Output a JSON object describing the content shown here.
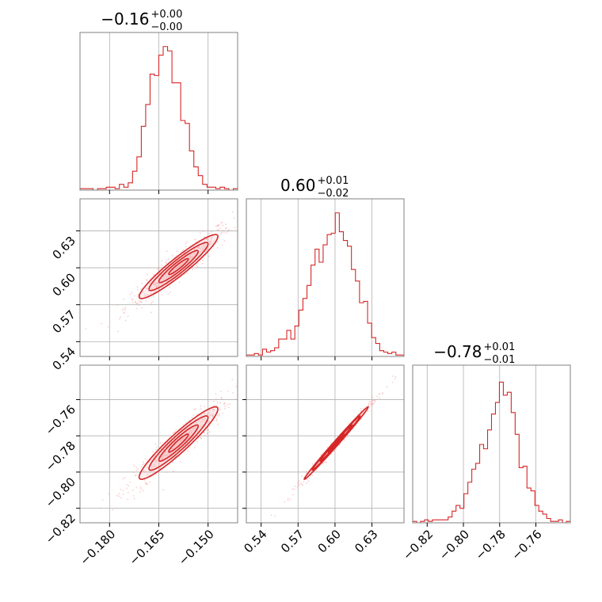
{
  "colors": {
    "series": "#d62728",
    "scatter": "#f4a6a8",
    "fill": "#f2b8b9",
    "grid": "#b0b0b0",
    "frame": "#808080"
  },
  "chart_data": {
    "type": "corner",
    "params": [
      {
        "id": "p1",
        "range": [
          -0.189,
          -0.141
        ],
        "ticks": [
          -0.18,
          -0.165,
          -0.15
        ],
        "tick_labels": [
          "−0.180",
          "−0.165",
          "−0.150"
        ],
        "title_value": "−0.16",
        "title_plus": "+0.00",
        "title_minus": "−0.00",
        "hist": [
          0.01,
          0.01,
          0.01,
          0.0,
          0.01,
          0.01,
          0.02,
          0.02,
          0.01,
          0.04,
          0.02,
          0.05,
          0.13,
          0.23,
          0.44,
          0.59,
          0.8,
          0.79,
          0.93,
          0.99,
          0.96,
          0.74,
          0.74,
          0.48,
          0.46,
          0.27,
          0.16,
          0.1,
          0.04,
          0.02,
          0.02,
          0.01,
          0.02,
          0.01,
          0.0,
          0.01
        ]
      },
      {
        "id": "p2",
        "range": [
          0.528,
          0.656
        ],
        "ticks": [
          0.54,
          0.57,
          0.6,
          0.63
        ],
        "tick_labels": [
          "0.54",
          "0.57",
          "0.60",
          "0.63"
        ],
        "title_value": "0.60",
        "title_plus": "+0.01",
        "title_minus": "−0.02",
        "hist": [
          0.01,
          0.01,
          0.02,
          0.01,
          0.05,
          0.03,
          0.04,
          0.06,
          0.12,
          0.12,
          0.18,
          0.12,
          0.21,
          0.32,
          0.4,
          0.49,
          0.63,
          0.74,
          0.65,
          0.77,
          0.84,
          0.85,
          0.99,
          0.86,
          0.8,
          0.76,
          0.6,
          0.52,
          0.37,
          0.38,
          0.23,
          0.13,
          0.09,
          0.04,
          0.03,
          0.02,
          0.03,
          0.01,
          0.01
        ]
      },
      {
        "id": "p3",
        "range": [
          -0.828,
          -0.741
        ],
        "ticks": [
          -0.82,
          -0.8,
          -0.78,
          -0.76
        ],
        "tick_labels": [
          "−0.82",
          "−0.80",
          "−0.78",
          "−0.76"
        ],
        "title_value": "−0.78",
        "title_plus": "+0.01",
        "title_minus": "−0.01",
        "hist": [
          0.01,
          0.0,
          0.01,
          0.02,
          0.01,
          0.02,
          0.02,
          0.02,
          0.02,
          0.04,
          0.08,
          0.12,
          0.1,
          0.2,
          0.28,
          0.37,
          0.41,
          0.54,
          0.51,
          0.64,
          0.75,
          0.83,
          0.97,
          0.88,
          0.9,
          0.76,
          0.61,
          0.38,
          0.39,
          0.24,
          0.22,
          0.12,
          0.08,
          0.06,
          0.03,
          0.01,
          0.01,
          0.02,
          0.0,
          0.01
        ]
      }
    ],
    "pairs": [
      {
        "x": "p1",
        "y": "p2",
        "center": [
          -0.159,
          0.601
        ],
        "sd": [
          0.006,
          0.013
        ],
        "corr": 0.94,
        "n": 450
      },
      {
        "x": "p1",
        "y": "p3",
        "center": [
          -0.159,
          -0.784
        ],
        "sd": [
          0.006,
          0.01
        ],
        "corr": 0.94,
        "n": 450
      },
      {
        "x": "p2",
        "y": "p3",
        "center": [
          0.601,
          -0.784
        ],
        "sd": [
          0.013,
          0.01
        ],
        "corr": 0.995,
        "n": 350
      }
    ],
    "contour_levels": [
      0.5,
      1.0,
      1.5,
      2.0
    ],
    "grid": true
  }
}
